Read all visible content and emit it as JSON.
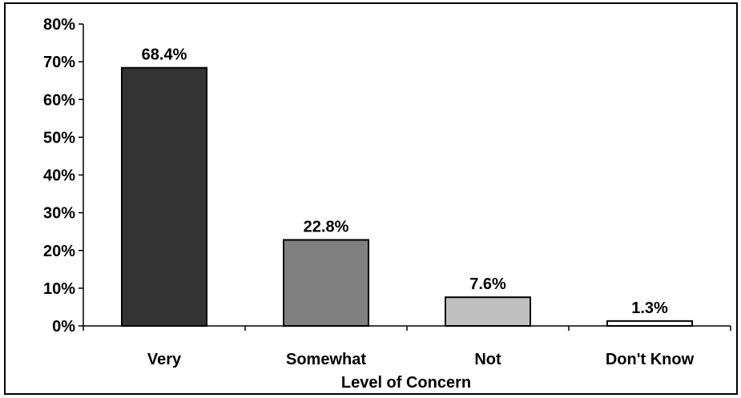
{
  "chart_data": {
    "type": "bar",
    "title": "",
    "xlabel": "Level of Concern",
    "ylabel": "",
    "categories": [
      "Very",
      "Somewhat",
      "Not",
      "Don't Know"
    ],
    "values": [
      68.4,
      22.8,
      7.6,
      1.3
    ],
    "value_labels": [
      "68.4%",
      "22.8%",
      "7.6%",
      "1.3%"
    ],
    "ylim": [
      0,
      80
    ],
    "yticks": [
      0,
      10,
      20,
      30,
      40,
      50,
      60,
      70,
      80
    ],
    "ytick_labels": [
      "0%",
      "10%",
      "20%",
      "30%",
      "40%",
      "50%",
      "60%",
      "70%",
      "80%"
    ],
    "bar_colors": [
      "#333333",
      "#808080",
      "#c0c0c0",
      "#ffffff"
    ],
    "grid": false,
    "legend": "none"
  }
}
